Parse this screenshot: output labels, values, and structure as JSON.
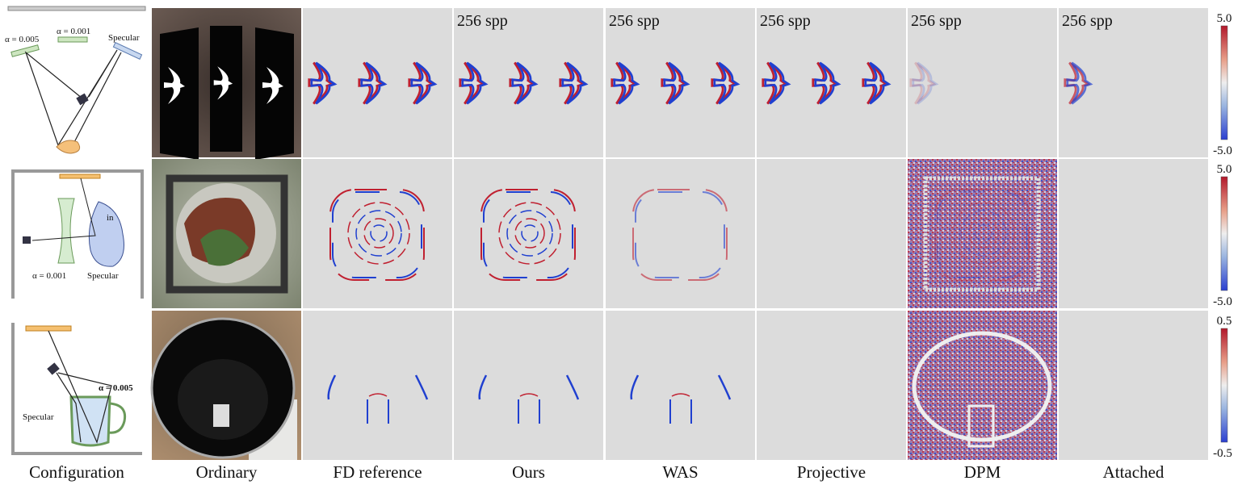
{
  "columns": [
    "Configuration",
    "Ordinary",
    "FD reference",
    "Ours",
    "WAS",
    "Projective",
    "DPM",
    "Attached"
  ],
  "spp_labels": [
    "256 spp",
    "256 spp",
    "256 spp",
    "256 spp",
    "256 spp"
  ],
  "colorbars": [
    {
      "top": "5.0",
      "bottom": "-5.0"
    },
    {
      "top": "5.0",
      "bottom": "-5.0"
    },
    {
      "top": "0.5",
      "bottom": "-0.5"
    }
  ],
  "diagrams": [
    {
      "labels": [
        "α = 0.005",
        "α = 0.001",
        "Specular"
      ]
    },
    {
      "labels": [
        "in",
        "α = 0.001",
        "Specular"
      ]
    },
    {
      "labels": [
        "α = 0.005",
        "Specular"
      ]
    }
  ]
}
